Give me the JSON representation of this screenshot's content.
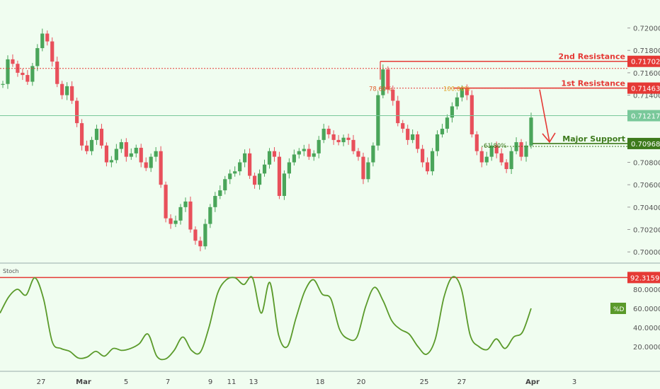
{
  "chart_data": [
    {
      "type": "candlestick",
      "title": "",
      "xlabel": "",
      "ylabel": "",
      "ylim": [
        0.699,
        0.7225
      ],
      "y_ticks": [
        "0.72000",
        "0.71800",
        "0.71600",
        "0.71400",
        "0.71200",
        "0.71000",
        "0.70800",
        "0.70600",
        "0.70400",
        "0.70200",
        "0.70000"
      ],
      "x_ticks": [
        "27",
        "Mar",
        "5",
        "7",
        "9",
        "11",
        "13",
        "18",
        "20",
        "25",
        "27",
        "Apr",
        "3"
      ],
      "current_price": {
        "label": "0.71217",
        "value": 0.71217
      },
      "levels": [
        {
          "name": "2nd Resistance",
          "value": 0.71702,
          "label": "0.71702",
          "color": "#e53935"
        },
        {
          "name": "1st Resistance",
          "value": 0.71463,
          "label": "0.71463",
          "color": "#e53935"
        },
        {
          "name": "Major Support",
          "value": 0.70968,
          "label": "0.70968",
          "color": "#3d7a1c"
        }
      ],
      "fib_labels": [
        "78.60%",
        "100.00%",
        "61.80%"
      ],
      "close_series": [
        0.715,
        0.7172,
        0.7168,
        0.716,
        0.7158,
        0.7152,
        0.7166,
        0.7182,
        0.7195,
        0.7188,
        0.717,
        0.715,
        0.714,
        0.7148,
        0.7135,
        0.7115,
        0.7095,
        0.709,
        0.71,
        0.711,
        0.7095,
        0.708,
        0.7082,
        0.7092,
        0.7098,
        0.7085,
        0.7088,
        0.7093,
        0.708,
        0.7075,
        0.7085,
        0.709,
        0.706,
        0.703,
        0.7025,
        0.7028,
        0.704,
        0.7045,
        0.702,
        0.701,
        0.7005,
        0.7025,
        0.704,
        0.705,
        0.7055,
        0.7065,
        0.707,
        0.7072,
        0.708,
        0.7088,
        0.7068,
        0.706,
        0.707,
        0.7078,
        0.709,
        0.7085,
        0.705,
        0.707,
        0.708,
        0.7087,
        0.709,
        0.7092,
        0.7085,
        0.7088,
        0.71,
        0.711,
        0.7105,
        0.71,
        0.7098,
        0.7102,
        0.71,
        0.709,
        0.7085,
        0.7065,
        0.708,
        0.7095,
        0.714,
        0.7163,
        0.7145,
        0.7135,
        0.7115,
        0.711,
        0.71,
        0.7105,
        0.7092,
        0.708,
        0.7072,
        0.709,
        0.7105,
        0.711,
        0.712,
        0.713,
        0.7138,
        0.7146,
        0.714,
        0.7105,
        0.709,
        0.708,
        0.7085,
        0.7095,
        0.7088,
        0.708,
        0.7074,
        0.709,
        0.7098,
        0.7085,
        0.7095,
        0.712
      ]
    },
    {
      "type": "line",
      "indicator": "Stoch",
      "ylim": [
        0,
        100
      ],
      "y_ticks": [
        "80.0000",
        "60.0000",
        "40.0000",
        "20.0000"
      ],
      "highlight": {
        "value": 92.3159,
        "label": "92.3159",
        "color": "#e53935"
      },
      "series": [
        {
          "name": "%D",
          "color": "#5a9a2a",
          "values": [
            55,
            72,
            80,
            74,
            92,
            70,
            25,
            18,
            15,
            8,
            9,
            15,
            10,
            18,
            16,
            18,
            23,
            33,
            10,
            7,
            16,
            30,
            16,
            14,
            40,
            76,
            90,
            92,
            85,
            92,
            55,
            87,
            32,
            20,
            50,
            78,
            90,
            75,
            70,
            38,
            28,
            30,
            62,
            82,
            68,
            47,
            38,
            33,
            20,
            12,
            28,
            72,
            93,
            80,
            32,
            20,
            17,
            28,
            18,
            30,
            35,
            60
          ]
        }
      ]
    }
  ]
}
